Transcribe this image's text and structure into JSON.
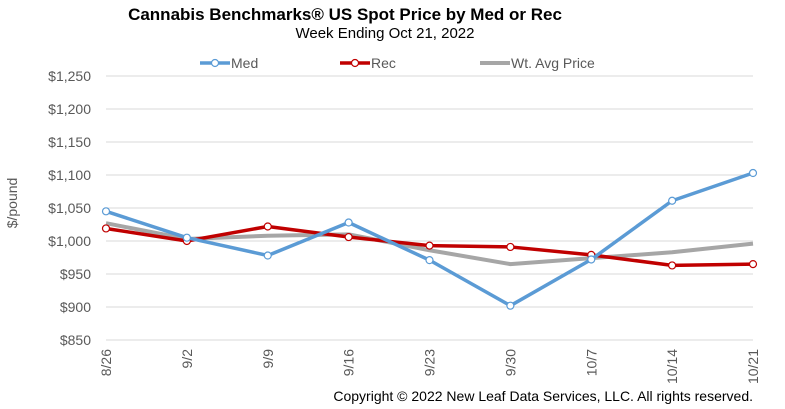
{
  "chart_data": {
    "type": "line",
    "title": "Cannabis Benchmarks® US Spot Price by Med or Rec",
    "subtitle": "Week Ending Oct 21, 2022",
    "ylabel": "$/pound",
    "xlabel": "",
    "categories": [
      "8/26",
      "9/2",
      "9/9",
      "9/16",
      "9/23",
      "9/30",
      "10/7",
      "10/14",
      "10/21"
    ],
    "y_ticks": [
      "$850",
      "$900",
      "$950",
      "$1,000",
      "$1,050",
      "$1,100",
      "$1,150",
      "$1,200",
      "$1,250"
    ],
    "ylim": [
      850,
      1250
    ],
    "grid": true,
    "legend_position": "top",
    "series": [
      {
        "name": "Med",
        "color": "#5B9BD5",
        "markers": true,
        "values": [
          1045,
          1005,
          978,
          1028,
          971,
          902,
          972,
          1061,
          1103
        ]
      },
      {
        "name": "Rec",
        "color": "#C00000",
        "markers": true,
        "values": [
          1019,
          1000,
          1022,
          1006,
          993,
          991,
          979,
          963,
          965
        ]
      },
      {
        "name": "Wt. Avg Price",
        "color": "#A6A6A6",
        "markers": false,
        "values": [
          1027,
          1003,
          1008,
          1010,
          986,
          965,
          974,
          983,
          996
        ]
      }
    ]
  },
  "footer": {
    "copyright": "Copyright © 2022 New Leaf Data Services, LLC. All rights reserved."
  }
}
